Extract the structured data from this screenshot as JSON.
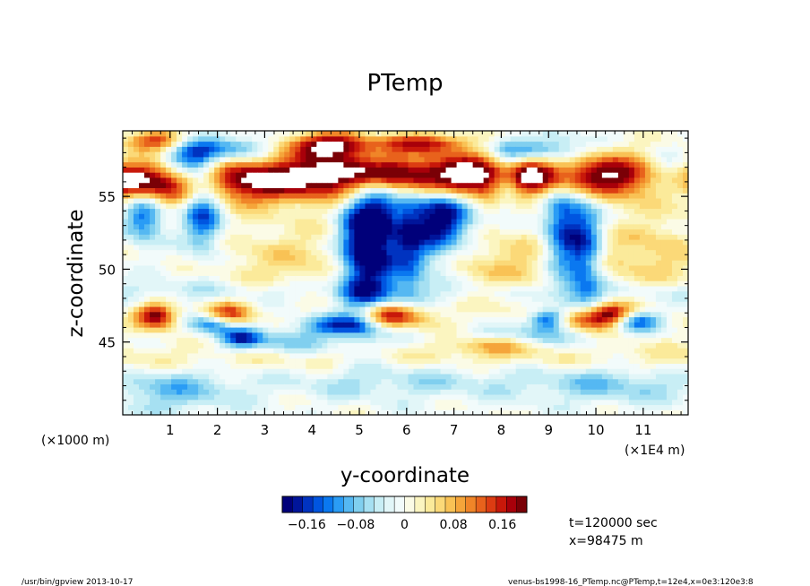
{
  "chart_data": {
    "type": "heatmap",
    "title": "PTemp",
    "xlabel": "y-coordinate",
    "ylabel": "z-coordinate",
    "x_unit_left": "(×1000 m)",
    "x_unit_right": "(×1E4 m)",
    "xlim": [
      0,
      11.95
    ],
    "ylim": [
      40,
      59.5
    ],
    "x_ticks": [
      "1",
      "2",
      "3",
      "4",
      "5",
      "6",
      "7",
      "8",
      "9",
      "10",
      "11"
    ],
    "y_ticks": [
      "45",
      "50",
      "55"
    ],
    "colorbar": {
      "range": [
        -0.2,
        0.2
      ],
      "tick_labels": [
        "−0.16",
        "−0.08",
        "0",
        "0.08",
        "0.16"
      ],
      "tick_values": [
        -0.16,
        -0.08,
        0,
        0.08,
        0.16
      ],
      "colors": [
        "#00007a",
        "#00159a",
        "#0033c0",
        "#0055e0",
        "#0a78f0",
        "#2a9cf5",
        "#55b8f2",
        "#80cfef",
        "#a6e0f2",
        "#c8eef5",
        "#e2f6f8",
        "#f2fbfb",
        "#fbfbe6",
        "#fbf5c0",
        "#fbea9a",
        "#fbd978",
        "#f9c255",
        "#f5a53a",
        "#f08528",
        "#e8621c",
        "#dc3c12",
        "#c8180a",
        "#a8000a",
        "#7a0006"
      ]
    },
    "blobs": [
      {
        "x": 2.6,
        "z": 56.2,
        "a": 0.14,
        "sx": 1.3,
        "sz": 1.2
      },
      {
        "x": 5.2,
        "z": 56.8,
        "a": 0.18,
        "sx": 1.1,
        "sz": 1.0
      },
      {
        "x": 7.4,
        "z": 56.5,
        "a": 0.16,
        "sx": 1.3,
        "sz": 1.0
      },
      {
        "x": 10.2,
        "z": 56.6,
        "a": 0.14,
        "sx": 1.4,
        "sz": 1.0
      },
      {
        "x": 0.4,
        "z": 56.0,
        "a": 0.15,
        "sx": 0.6,
        "sz": 1.0
      },
      {
        "x": 4.5,
        "z": 58.6,
        "a": 0.2,
        "sx": 0.7,
        "sz": 0.6
      },
      {
        "x": 6.4,
        "z": 58.7,
        "a": 0.16,
        "sx": 0.6,
        "sz": 0.5
      },
      {
        "x": 0.8,
        "z": 58.9,
        "a": 0.16,
        "sx": 0.5,
        "sz": 0.5
      },
      {
        "x": 1.4,
        "z": 57.6,
        "a": -0.17,
        "sx": 0.45,
        "sz": 1.2
      },
      {
        "x": 1.7,
        "z": 54.3,
        "a": -0.16,
        "sx": 0.3,
        "sz": 2.2
      },
      {
        "x": 0.45,
        "z": 53.8,
        "a": -0.15,
        "sx": 0.3,
        "sz": 1.3
      },
      {
        "x": 5.0,
        "z": 51.5,
        "a": -0.19,
        "sx": 0.32,
        "sz": 3.6
      },
      {
        "x": 5.45,
        "z": 53.0,
        "a": -0.16,
        "sx": 0.28,
        "sz": 3.4
      },
      {
        "x": 6.05,
        "z": 52.5,
        "a": -0.16,
        "sx": 0.26,
        "sz": 3.2
      },
      {
        "x": 6.6,
        "z": 53.5,
        "a": -0.14,
        "sx": 0.3,
        "sz": 2.4
      },
      {
        "x": 7.05,
        "z": 53.5,
        "a": -0.12,
        "sx": 0.35,
        "sz": 1.4
      },
      {
        "x": 9.3,
        "z": 53.0,
        "a": -0.16,
        "sx": 0.3,
        "sz": 3.2
      },
      {
        "x": 9.8,
        "z": 51.0,
        "a": -0.14,
        "sx": 0.26,
        "sz": 3.0
      },
      {
        "x": 8.1,
        "z": 56.2,
        "a": -0.14,
        "sx": 0.25,
        "sz": 1.3
      },
      {
        "x": 11.5,
        "z": 56.5,
        "a": -0.13,
        "sx": 0.4,
        "sz": 1.0
      },
      {
        "x": 2.5,
        "z": 58.3,
        "a": -0.12,
        "sx": 0.5,
        "sz": 0.6
      },
      {
        "x": 8.7,
        "z": 58.2,
        "a": -0.12,
        "sx": 0.6,
        "sz": 0.6
      },
      {
        "x": 0.7,
        "z": 46.8,
        "a": 0.2,
        "sx": 0.3,
        "sz": 0.6
      },
      {
        "x": 2.2,
        "z": 46.9,
        "a": 0.16,
        "sx": 0.35,
        "sz": 0.6
      },
      {
        "x": 5.7,
        "z": 46.8,
        "a": 0.2,
        "sx": 0.5,
        "sz": 0.6
      },
      {
        "x": 9.8,
        "z": 46.6,
        "a": 0.19,
        "sx": 0.45,
        "sz": 0.6
      },
      {
        "x": 10.4,
        "z": 47.0,
        "a": 0.14,
        "sx": 0.3,
        "sz": 0.5
      },
      {
        "x": 7.8,
        "z": 44.8,
        "a": 0.08,
        "sx": 0.6,
        "sz": 0.5
      },
      {
        "x": 1.9,
        "z": 46.3,
        "a": -0.16,
        "sx": 0.35,
        "sz": 0.5
      },
      {
        "x": 2.5,
        "z": 45.3,
        "a": -0.14,
        "sx": 0.3,
        "sz": 0.5
      },
      {
        "x": 4.6,
        "z": 46.2,
        "a": -0.14,
        "sx": 0.6,
        "sz": 0.5
      },
      {
        "x": 9.0,
        "z": 46.6,
        "a": -0.17,
        "sx": 0.3,
        "sz": 0.5
      },
      {
        "x": 10.85,
        "z": 46.5,
        "a": -0.15,
        "sx": 0.35,
        "sz": 0.5
      },
      {
        "x": 3.5,
        "z": 45.0,
        "a": -0.08,
        "sx": 0.8,
        "sz": 0.6
      },
      {
        "x": 8.5,
        "z": 45.5,
        "a": -0.07,
        "sx": 0.9,
        "sz": 0.5
      },
      {
        "x": 1.0,
        "z": 41.8,
        "a": -0.08,
        "sx": 1.0,
        "sz": 1.2
      },
      {
        "x": 6.0,
        "z": 42.5,
        "a": -0.06,
        "sx": 2.2,
        "sz": 1.0
      },
      {
        "x": 10.5,
        "z": 42.2,
        "a": -0.07,
        "sx": 1.3,
        "sz": 1.0
      },
      {
        "x": 3.5,
        "z": 50.5,
        "a": 0.05,
        "sx": 1.2,
        "sz": 1.8
      },
      {
        "x": 8.3,
        "z": 50.0,
        "a": 0.06,
        "sx": 1.2,
        "sz": 2.0
      },
      {
        "x": 11.2,
        "z": 51.0,
        "a": 0.06,
        "sx": 0.8,
        "sz": 2.0
      }
    ],
    "bands": [
      {
        "z": 56.0,
        "a": 0.07,
        "sz": 1.0
      },
      {
        "z": 48.5,
        "a": -0.04,
        "sz": 0.6
      },
      {
        "z": 43.8,
        "a": 0.04,
        "sz": 0.8
      }
    ]
  },
  "annotations": {
    "time": "t=120000 sec",
    "position": "x=98475 m",
    "footer_left": "/usr/bin/gpview  2013-10-17",
    "footer_right": "venus-bs1998-16_PTemp.nc@PTemp,t=12e4,x=0e3:120e3:8"
  }
}
